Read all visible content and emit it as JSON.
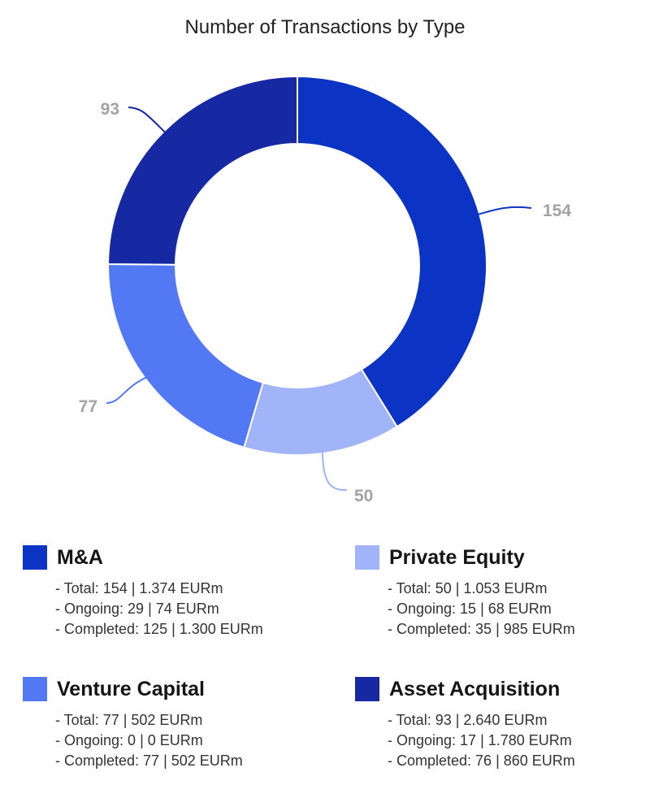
{
  "chart_data": {
    "type": "pie",
    "title": "Number of Transactions by Type",
    "categories": [
      "M&A",
      "Private Equity",
      "Venture Capital",
      "Asset Acquisition"
    ],
    "values": [
      154,
      50,
      77,
      93
    ],
    "colors": [
      "#0b34c4",
      "#a1b4f8",
      "#5378f4",
      "#1728a3"
    ],
    "data_labels": [
      "154",
      "50",
      "77",
      "93"
    ]
  },
  "legend": [
    {
      "name": "M&A",
      "color": "#0b34c4",
      "lines": [
        "- Total: 154 | 1.374 EURm",
        "- Ongoing: 29 | 74 EURm",
        "- Completed: 125 | 1.300 EURm"
      ]
    },
    {
      "name": "Private Equity",
      "color": "#a1b4f8",
      "lines": [
        "- Total: 50 | 1.053 EURm",
        "- Ongoing: 15 | 68 EURm",
        "- Completed: 35 | 985 EURm"
      ]
    },
    {
      "name": "Venture Capital",
      "color": "#5378f4",
      "lines": [
        "- Total: 77 | 502 EURm",
        "- Ongoing: 0 | 0 EURm",
        "- Completed: 77 | 502 EURm"
      ]
    },
    {
      "name": "Asset Acquisition",
      "color": "#1728a3",
      "lines": [
        "- Total: 93 | 2.640 EURm",
        "- Ongoing: 17 | 1.780 EURm",
        "- Completed: 76 | 860 EURm"
      ]
    }
  ]
}
